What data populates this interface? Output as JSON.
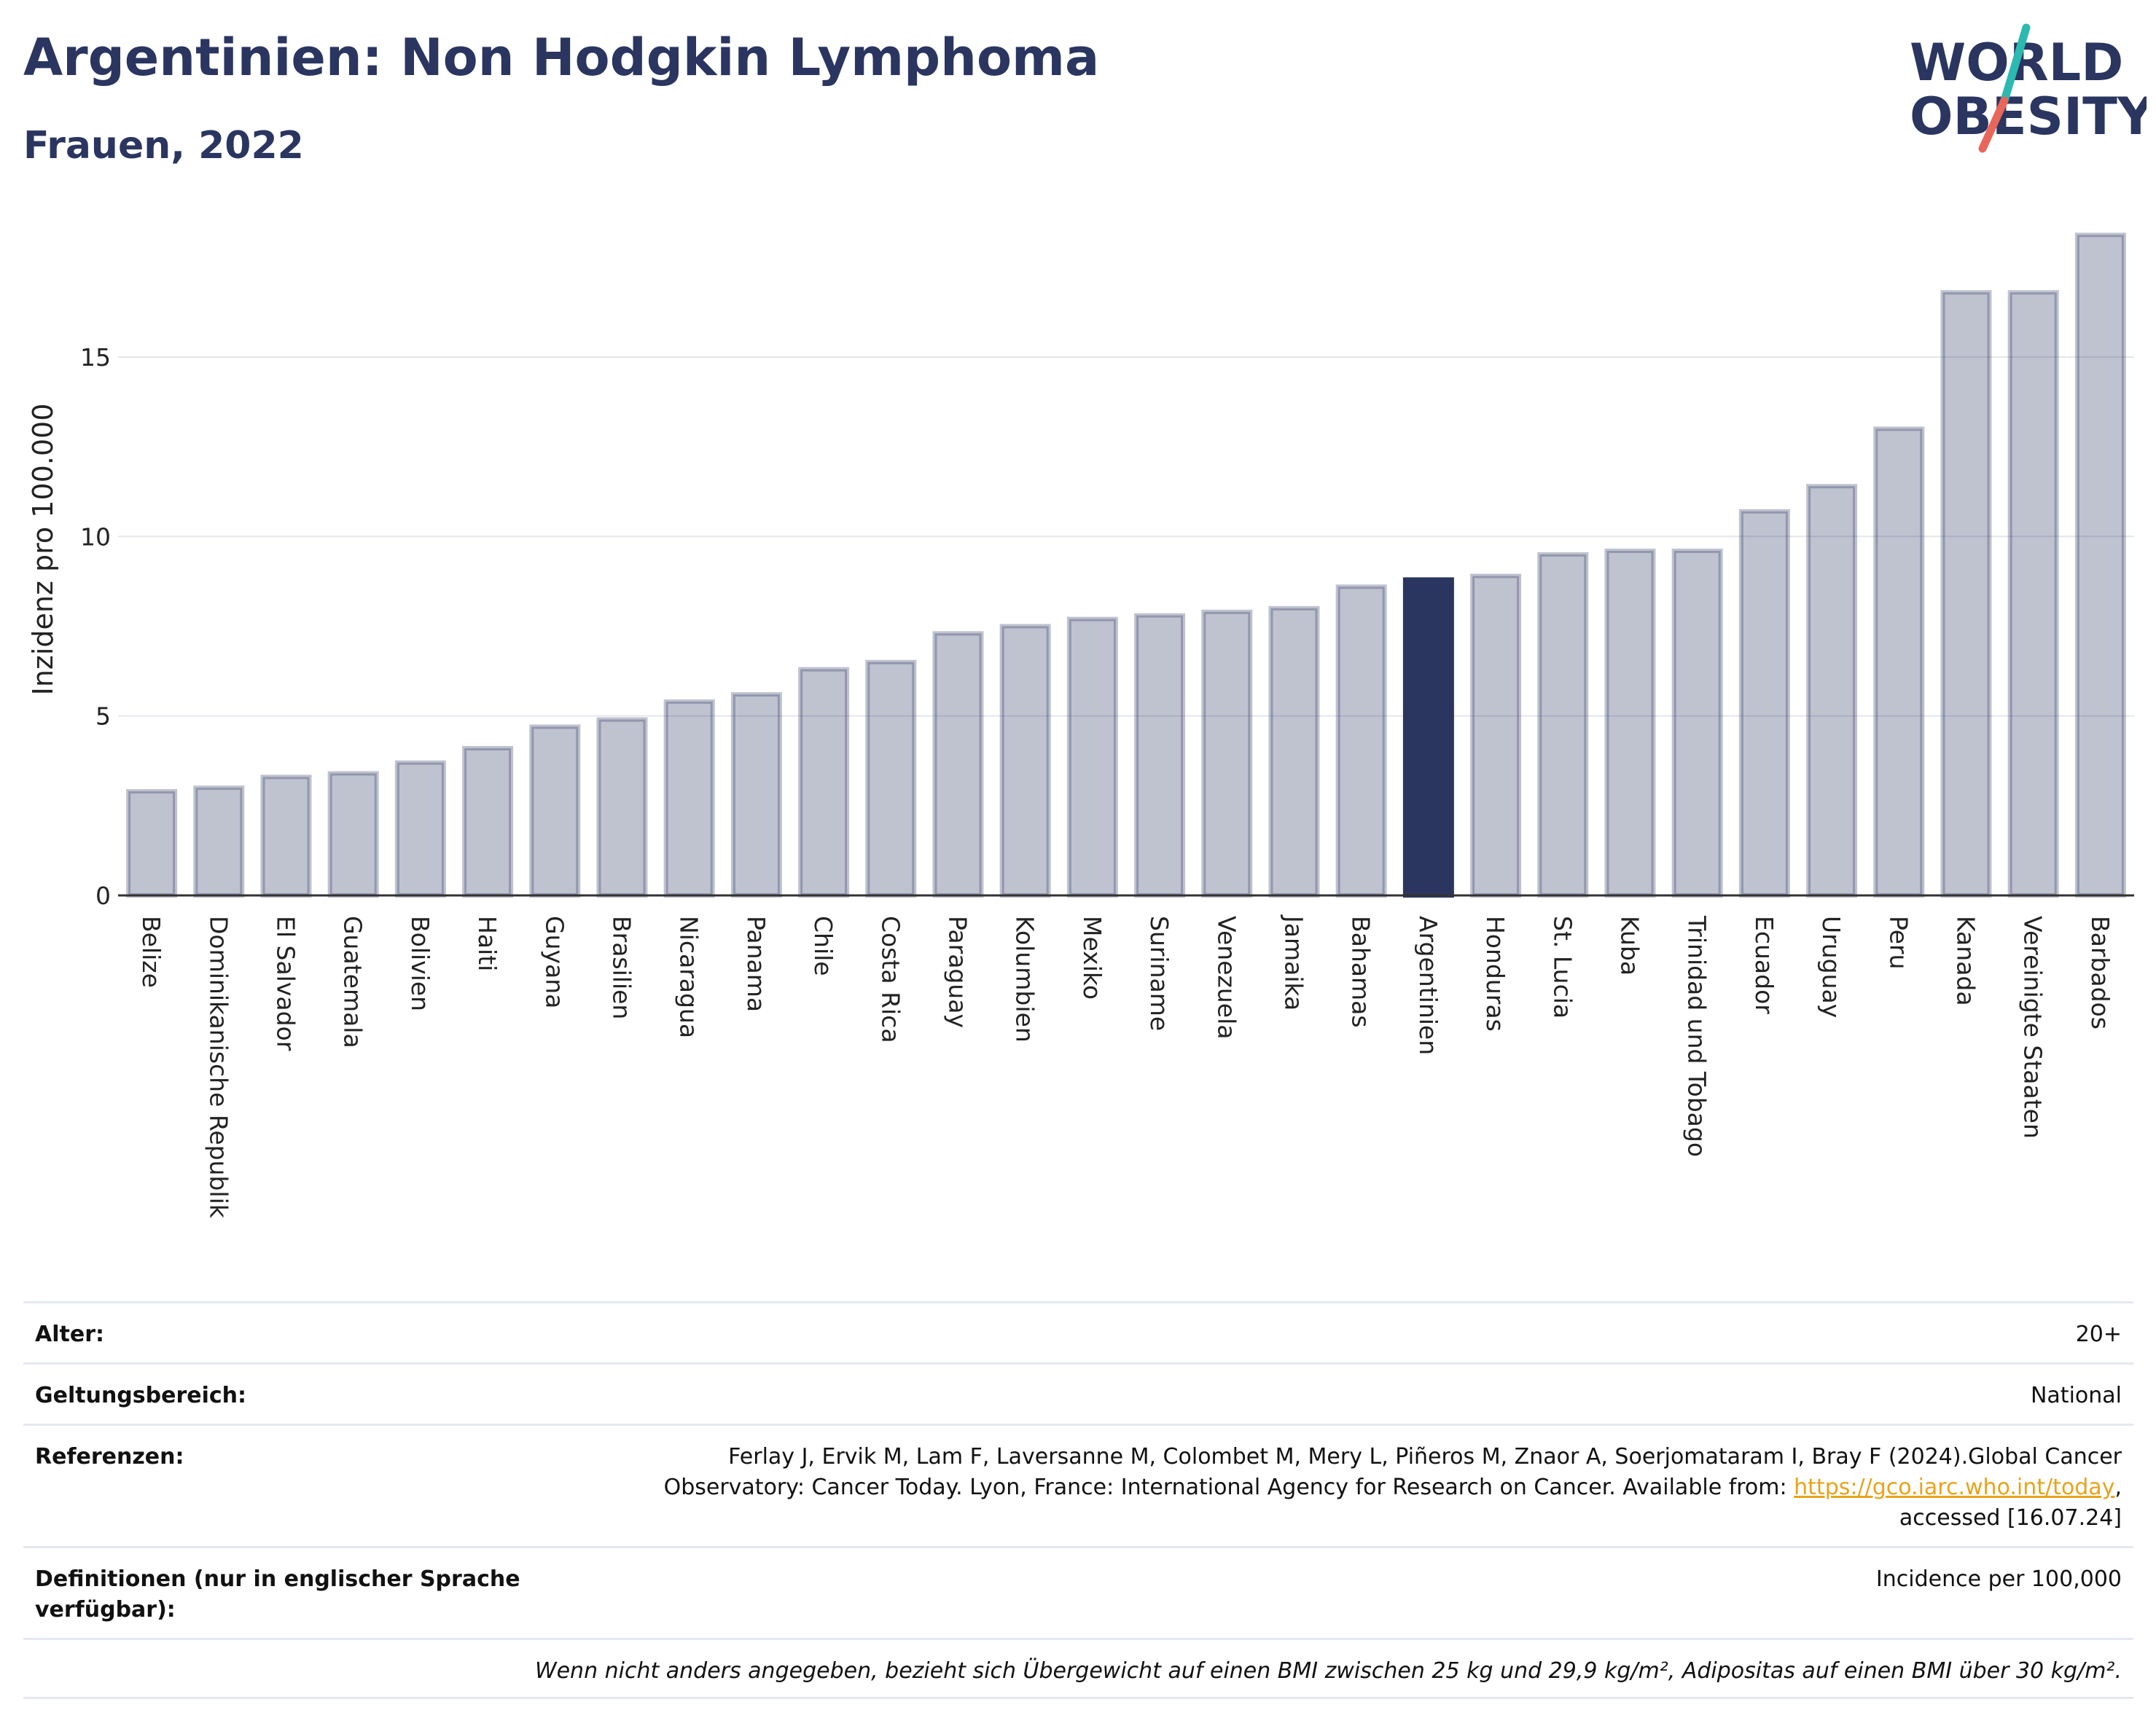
{
  "header": {
    "title": "Argentinien: Non Hodgkin Lymphoma",
    "subtitle": "Frauen, 2022"
  },
  "logo": {
    "line1": "WORLD",
    "line2": "OBESITY",
    "colors": {
      "text": "#2a3560",
      "slash_teal": "#2bb9b0",
      "slash_red": "#e8665a"
    }
  },
  "chart_data": {
    "type": "bar",
    "title": "Argentinien: Non Hodgkin Lymphoma",
    "subtitle": "Frauen, 2022",
    "xlabel": "",
    "ylabel": "Inzidenz pro 100.000",
    "ylim": [
      0,
      19
    ],
    "yticks": [
      0,
      5,
      10,
      15
    ],
    "grid": true,
    "colors": {
      "default": "#2a3560",
      "default_opacity": 0.3,
      "highlight": "#2a3560"
    },
    "highlight": "Argentinien",
    "categories": [
      "Belize",
      "Dominikanische Republik",
      "El Salvador",
      "Guatemala",
      "Bolivien",
      "Haiti",
      "Guyana",
      "Brasilien",
      "Nicaragua",
      "Panama",
      "Chile",
      "Costa Rica",
      "Paraguay",
      "Kolumbien",
      "Mexiko",
      "Suriname",
      "Venezuela",
      "Jamaika",
      "Bahamas",
      "Argentinien",
      "Honduras",
      "St. Lucia",
      "Kuba",
      "Trinidad und Tobago",
      "Ecuador",
      "Uruguay",
      "Peru",
      "Kanada",
      "Vereinigte Staaten",
      "Barbados"
    ],
    "values": [
      2.9,
      3.0,
      3.3,
      3.4,
      3.7,
      4.1,
      4.7,
      4.9,
      5.4,
      5.6,
      6.3,
      6.5,
      7.3,
      7.5,
      7.7,
      7.8,
      7.9,
      8.0,
      8.6,
      8.8,
      8.9,
      9.5,
      9.6,
      9.6,
      10.7,
      11.4,
      13.0,
      16.8,
      16.8,
      18.4
    ]
  },
  "info": {
    "age_label": "Alter:",
    "age_value": "20+",
    "scope_label": "Geltungsbereich:",
    "scope_value": "National",
    "refs_label": "Referenzen:",
    "refs_text_1": "Ferlay J, Ervik M, Lam F, Laversanne M, Colombet M, Mery L, Piñeros M, Znaor A, Soerjomataram I, Bray F (2024).Global Cancer",
    "refs_text_2": "Observatory: Cancer Today. Lyon, France: International Agency for Research on Cancer. Available from:",
    "refs_link": "https://gco.iarc.who.int/today",
    "refs_text_3": "accessed [16.07.24]",
    "defs_label": "Definitionen (nur in englischer Sprache verfügbar):",
    "defs_value": "Incidence per 100,000",
    "note": "Wenn nicht anders angegeben, bezieht sich Übergewicht auf einen BMI zwischen 25 kg und 29,9 kg/m², Adipositas auf einen BMI über 30 kg/m²."
  }
}
